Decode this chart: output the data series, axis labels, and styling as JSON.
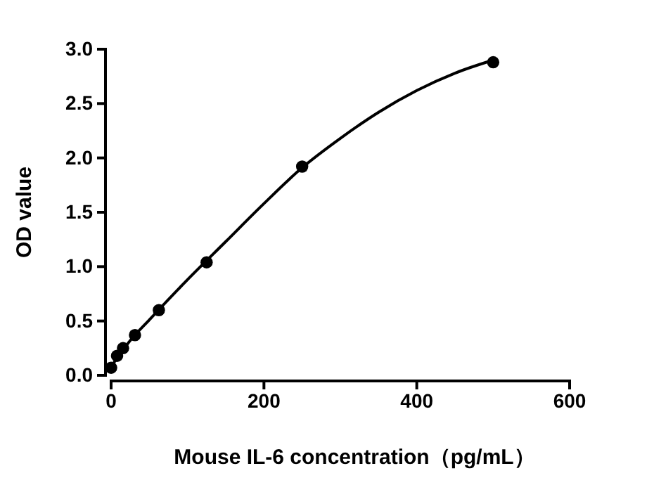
{
  "chart_data": {
    "type": "scatter",
    "xlabel": "Mouse  IL-6  concentration（pg/mL）",
    "ylabel": "OD value",
    "xlim": [
      0,
      600
    ],
    "xticks": [
      0,
      200,
      400,
      600
    ],
    "ylim": [
      0,
      3
    ],
    "yticks": [
      {
        "value": 0,
        "label": "0.0"
      },
      {
        "value": 0.5,
        "label": "0.5"
      },
      {
        "value": 1,
        "label": "1.0"
      },
      {
        "value": 1.5,
        "label": "1.5"
      },
      {
        "value": 2,
        "label": "2.0"
      },
      {
        "value": 2.5,
        "label": "2.5"
      },
      {
        "value": 3,
        "label": "3.0"
      }
    ],
    "grid": false,
    "marker": "circle",
    "series": [
      {
        "color": "#000000",
        "x": [
          0,
          7.8,
          15.6,
          31.25,
          62.5,
          125,
          250,
          500
        ],
        "values": [
          0.07,
          0.18,
          0.25,
          0.37,
          0.6,
          1.04,
          1.92,
          2.88
        ]
      },
      {
        "type": "line",
        "color": "#000000",
        "marker": "none",
        "line_style": "solid",
        "x": [
          0,
          25,
          50,
          100,
          150,
          200,
          250,
          300,
          350,
          400,
          450,
          500
        ],
        "values": [
          0.08,
          0.32,
          0.51,
          0.88,
          1.23,
          1.58,
          1.91,
          2.18,
          2.42,
          2.62,
          2.78,
          2.9
        ]
      }
    ]
  }
}
